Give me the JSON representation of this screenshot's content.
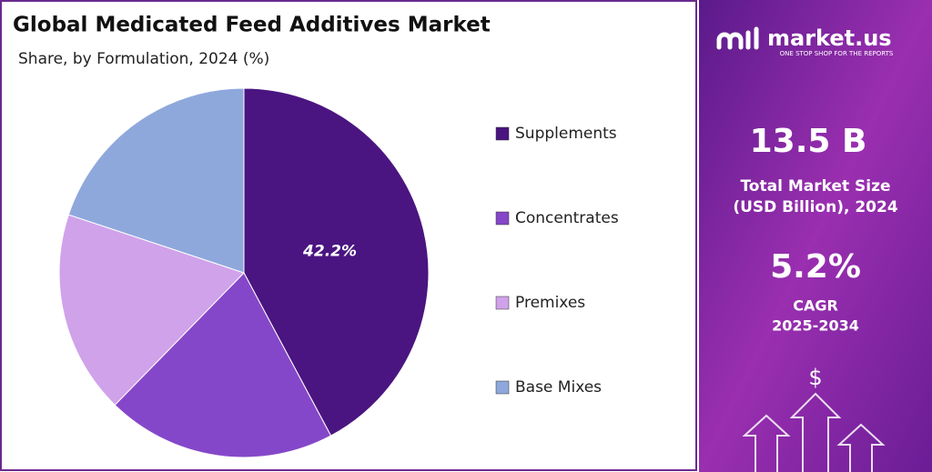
{
  "chart_data": {
    "type": "pie",
    "title": "Global Medicated Feed Additives Market",
    "subtitle": "Share, by Formulation, 2024 (%)",
    "categories": [
      "Supplements",
      "Concentrates",
      "Premixes",
      "Base Mixes"
    ],
    "values": [
      42.2,
      20.1,
      17.8,
      19.9
    ],
    "value_labels": [
      "42.2%",
      null,
      null,
      null
    ],
    "colors": [
      "#4a1580",
      "#8547c9",
      "#d0a2ea",
      "#8fa8dc"
    ],
    "legend": "right"
  },
  "panel": {
    "brand": "market.us",
    "tagline": "ONE STOP SHOP FOR THE REPORTS",
    "market_size": "13.5 B",
    "market_size_label": [
      "Total Market Size",
      "(USD Billion), 2024"
    ],
    "cagr": "5.2%",
    "cagr_label": [
      "CAGR",
      "2025-2034"
    ],
    "currency": "$"
  }
}
